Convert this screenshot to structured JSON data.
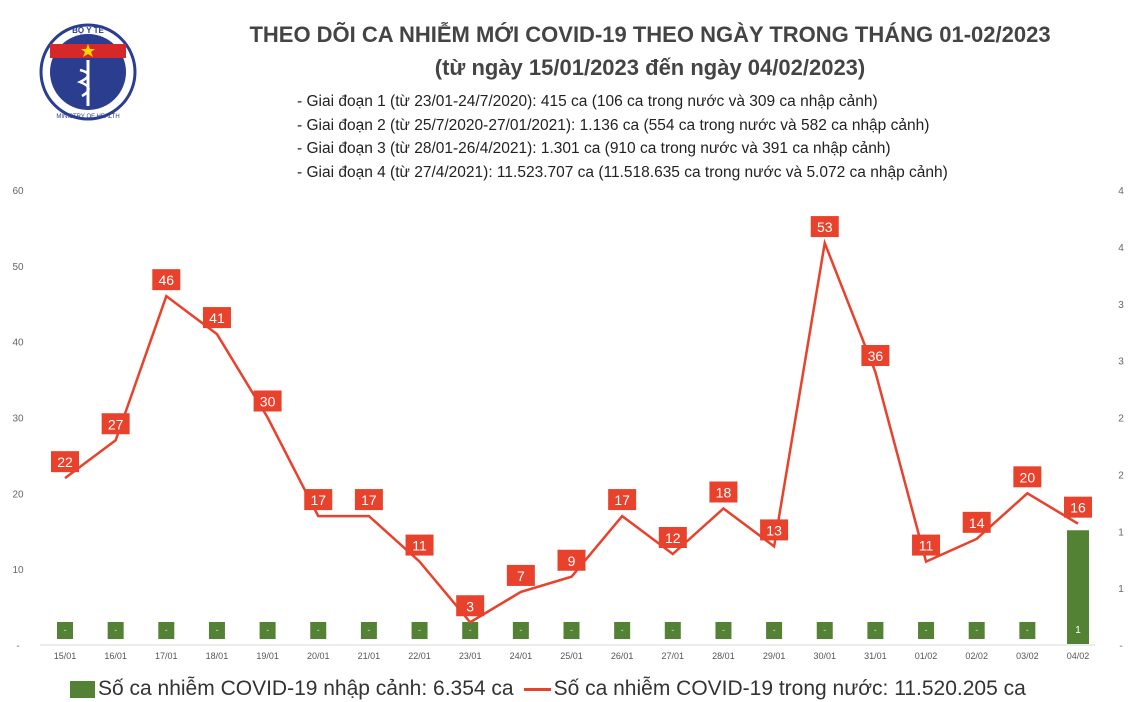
{
  "logo": {
    "top_text": "BỘ Y TẾ",
    "bottom_text": "MINISTRY OF HEALTH"
  },
  "title": "THEO DÕI CA NHIỄM MỚI COVID-19 THEO NGÀY TRONG THÁNG 01-02/2023",
  "subtitle": "(từ ngày 15/01/2023 đến ngày 04/02/2023)",
  "notes": [
    "- Giai đoạn 1 (từ 23/01-24/7/2020): 415 ca (106 ca trong nước và 309 ca nhập cảnh)",
    "- Giai đoạn 2 (từ 25/7/2020-27/01/2021): 1.136 ca (554 ca trong nước và 582 ca nhập cảnh)",
    "- Giai đoạn 3 (từ 28/01-26/4/2021): 1.301 ca (910 ca trong nước và 391 ca nhập cảnh)",
    "- Giai đoạn 4 (từ 27/4/2021): 11.523.707 ca (11.518.635 ca trong nước và 5.072 ca nhập cảnh)"
  ],
  "chart_data": {
    "type": "bar+line",
    "categories": [
      "15/01",
      "16/01",
      "17/01",
      "18/01",
      "19/01",
      "20/01",
      "21/01",
      "22/01",
      "23/01",
      "24/01",
      "25/01",
      "26/01",
      "27/01",
      "28/01",
      "29/01",
      "30/01",
      "31/01",
      "01/02",
      "02/02",
      "03/02",
      "04/02"
    ],
    "series": [
      {
        "name": "Số ca nhiễm COVID-19 nhập cảnh: 6.354 ca",
        "type": "bar",
        "axis": "right",
        "color": "#548235",
        "values": [
          0,
          0,
          0,
          0,
          0,
          0,
          0,
          0,
          0,
          0,
          0,
          0,
          0,
          0,
          0,
          0,
          0,
          0,
          0,
          0,
          1
        ]
      },
      {
        "name": "Số ca nhiễm COVID-19 trong nước: 11.520.205 ca",
        "type": "line",
        "axis": "left",
        "color": "#e8412c",
        "values": [
          22,
          27,
          46,
          41,
          30,
          17,
          17,
          11,
          3,
          7,
          9,
          17,
          12,
          18,
          13,
          53,
          36,
          11,
          14,
          20,
          16
        ]
      }
    ],
    "y_left": {
      "range": [
        0,
        60
      ],
      "ticks": [
        "-",
        "10",
        "20",
        "30",
        "40",
        "50",
        "60"
      ]
    },
    "y_right": {
      "range": [
        0,
        4
      ],
      "ticks": [
        "-",
        "1",
        "1",
        "2",
        "2",
        "3",
        "3",
        "4",
        "4"
      ]
    },
    "grid": false,
    "legend": "bottom"
  }
}
